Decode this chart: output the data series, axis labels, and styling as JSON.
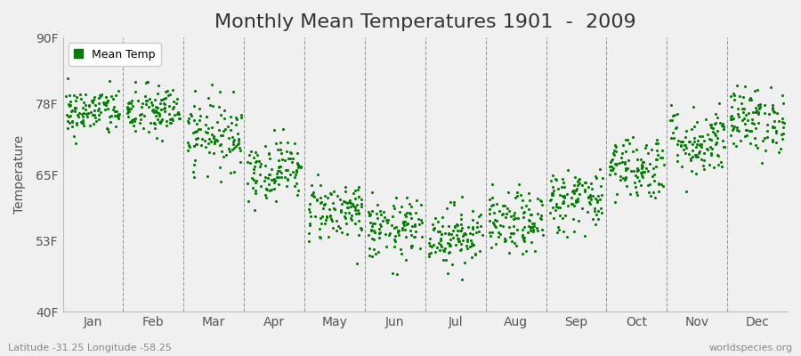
{
  "title": "Monthly Mean Temperatures 1901  -  2009",
  "ylabel": "Temperature",
  "ytick_labels": [
    "40F",
    "53F",
    "65F",
    "78F",
    "90F"
  ],
  "ytick_values": [
    40,
    53,
    65,
    78,
    90
  ],
  "ylim": [
    40,
    90
  ],
  "months": [
    "Jan",
    "Feb",
    "Mar",
    "Apr",
    "May",
    "Jun",
    "Jul",
    "Aug",
    "Sep",
    "Oct",
    "Nov",
    "Dec"
  ],
  "dot_color": "#008000",
  "bg_color": "#f0f0f0",
  "grid_color": "#777777",
  "footer_left": "Latitude -31.25 Longitude -58.25",
  "footer_right": "worldspecies.org",
  "legend_label": "Mean Temp",
  "title_fontsize": 16,
  "label_fontsize": 10,
  "tick_fontsize": 10,
  "n_years": 109,
  "mean_temps_by_month": [
    76.5,
    76.5,
    72.5,
    66.0,
    58.5,
    55.0,
    54.0,
    56.0,
    60.5,
    66.5,
    71.0,
    75.0
  ],
  "std_by_month": [
    2.2,
    2.5,
    3.2,
    2.8,
    2.8,
    2.8,
    2.8,
    2.8,
    3.0,
    3.0,
    3.2,
    3.0
  ],
  "seed": 42
}
